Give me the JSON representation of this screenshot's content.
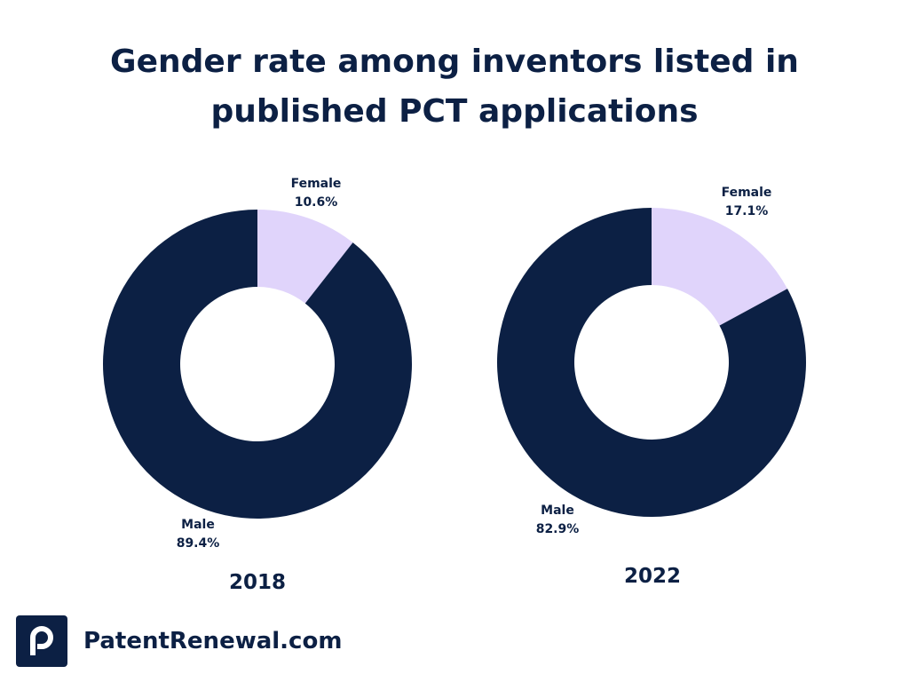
{
  "header": {
    "title_line1": "Gender rate among inventors listed in",
    "title_line2": "published PCT applications"
  },
  "chart_data": [
    {
      "type": "pie",
      "variant": "donut",
      "title": "2018",
      "slices": [
        {
          "label": "Female",
          "value": 10.6,
          "display": "10.6%",
          "color": "#e0d4fb"
        },
        {
          "label": "Male",
          "value": 89.4,
          "display": "89.4%",
          "color": "#0c2044"
        }
      ]
    },
    {
      "type": "pie",
      "variant": "donut",
      "title": "2022",
      "slices": [
        {
          "label": "Female",
          "value": 17.1,
          "display": "17.1%",
          "color": "#e0d4fb"
        },
        {
          "label": "Male",
          "value": 82.9,
          "display": "82.9%",
          "color": "#0c2044"
        }
      ]
    }
  ],
  "brand": {
    "name": "PatentRenewal.com",
    "logo_icon": "p-letter-logo-icon"
  }
}
